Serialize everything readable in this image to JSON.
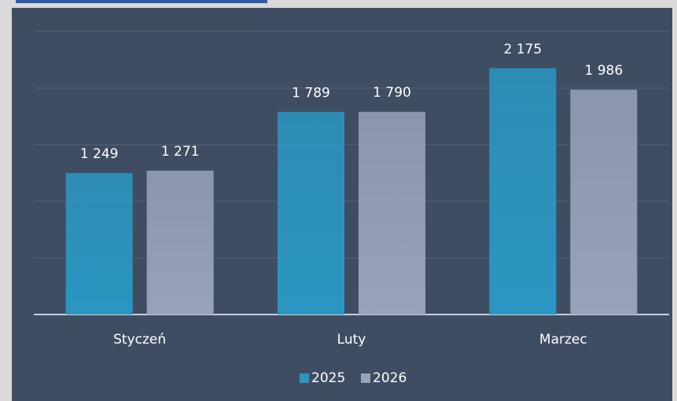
{
  "chart_data": {
    "type": "bar",
    "categories": [
      "Styczeń",
      "Luty",
      "Marzec"
    ],
    "series": [
      {
        "name": "2025",
        "color": "#2a97c2",
        "values": [
          1249,
          1789,
          2175
        ],
        "value_labels": [
          "1 249",
          "1 789",
          "2 175"
        ]
      },
      {
        "name": "2026",
        "color": "#97a3b9",
        "values": [
          1271,
          1790,
          1986
        ],
        "value_labels": [
          "1 271",
          "1 790",
          "1 986"
        ]
      }
    ],
    "ylim": [
      0,
      2500
    ],
    "yticks": [
      0,
      500,
      1000,
      1500,
      2000,
      2500
    ],
    "grid": true,
    "legend": "bottom"
  }
}
